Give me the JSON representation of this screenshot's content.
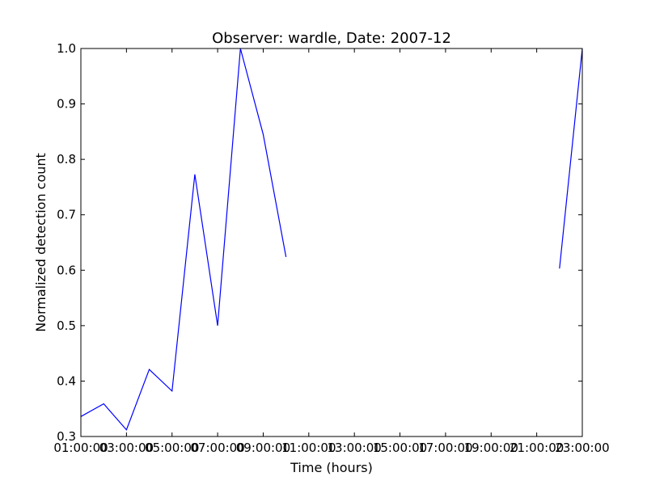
{
  "chart_data": {
    "type": "line",
    "title": "Observer: wardle, Date: 2007-12",
    "xlabel": "Time (hours)",
    "ylabel": "Normalized detection count",
    "xlim": [
      1,
      23
    ],
    "ylim": [
      0.3,
      1.0
    ],
    "x_ticks": [
      1,
      3,
      5,
      7,
      9,
      11,
      13,
      15,
      17,
      19,
      21,
      23
    ],
    "x_tick_labels": [
      "01:00:00",
      "03:00:00",
      "05:00:00",
      "07:00:00",
      "09:00:00",
      "11:00:00",
      "13:00:00",
      "15:00:00",
      "17:00:00",
      "19:00:00",
      "21:00:00",
      "23:00:00"
    ],
    "y_ticks": [
      0.3,
      0.4,
      0.5,
      0.6,
      0.7,
      0.8,
      0.9,
      1.0
    ],
    "y_tick_labels": [
      "0.3",
      "0.4",
      "0.5",
      "0.6",
      "0.7",
      "0.8",
      "0.9",
      "1.0"
    ],
    "grid": false,
    "series": [
      {
        "color": "#0000ff",
        "segments": [
          {
            "x": [
              1,
              2,
              3,
              4,
              5,
              6,
              7,
              8,
              9,
              10
            ],
            "y": [
              0.336,
              0.359,
              0.312,
              0.421,
              0.382,
              0.773,
              0.5,
              1.0,
              0.845,
              0.624
            ]
          },
          {
            "x": [
              22,
              23
            ],
            "y": [
              0.603,
              1.0
            ]
          }
        ]
      }
    ]
  }
}
